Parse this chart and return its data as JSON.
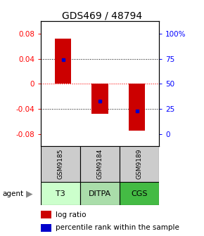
{
  "title": "GDS469 / 48794",
  "bar_values": [
    0.072,
    -0.048,
    -0.075
  ],
  "percentile_yvals": [
    0.038,
    -0.028,
    -0.044
  ],
  "categories": [
    "GSM9185",
    "GSM9184",
    "GSM9189"
  ],
  "agents": [
    "T3",
    "DITPA",
    "CGS"
  ],
  "agent_colors": [
    "#ccffcc",
    "#aaddaa",
    "#44bb44"
  ],
  "sample_color": "#cccccc",
  "bar_color": "#cc0000",
  "percentile_color": "#0000cc",
  "ylim": [
    -0.1,
    0.1
  ],
  "yticks_left": [
    -0.08,
    -0.04,
    0,
    0.04,
    0.08
  ],
  "yticks_left_labels": [
    "-0.08",
    "-0.04",
    "0",
    "0.04",
    "0.08"
  ],
  "yticks_right_labels": [
    "0",
    "25",
    "50",
    "75",
    "100%"
  ],
  "title_fontsize": 10
}
